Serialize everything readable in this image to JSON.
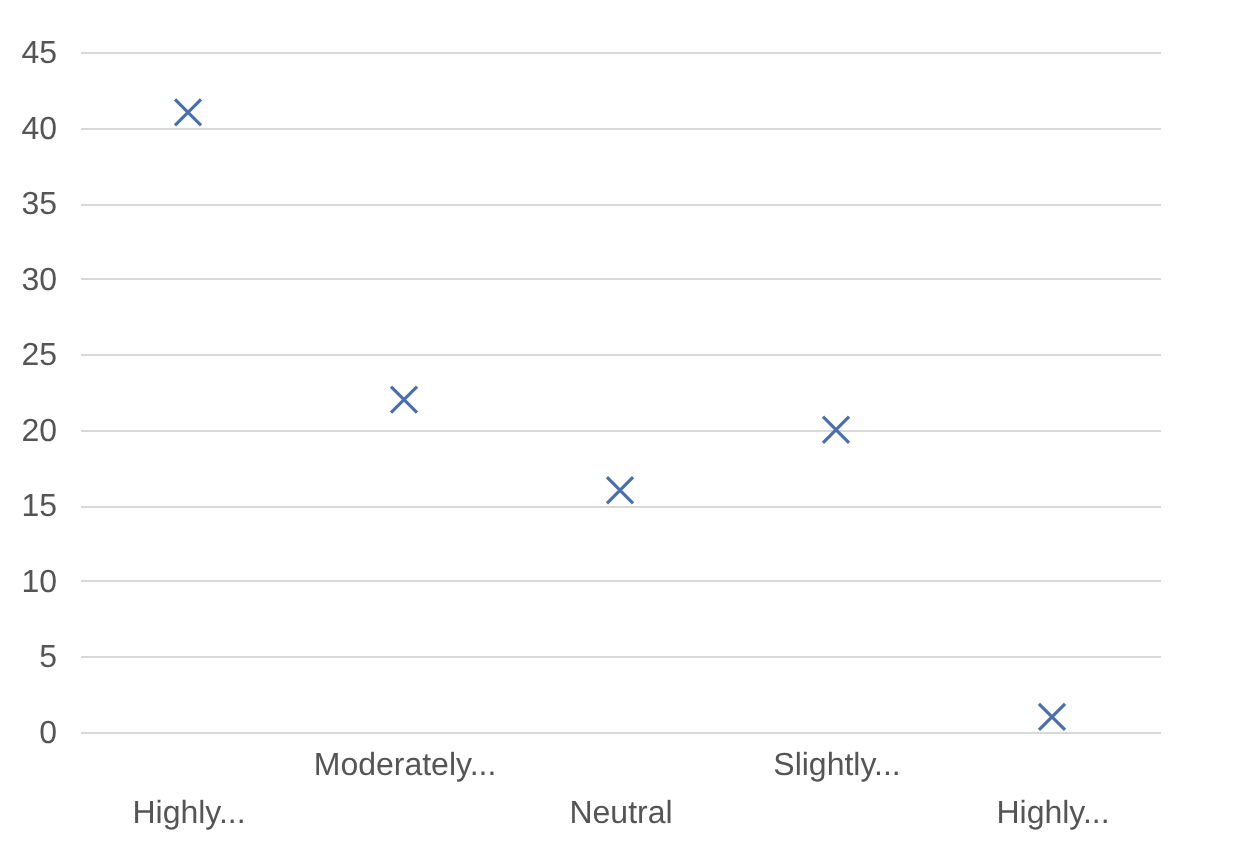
{
  "chart_data": {
    "type": "scatter",
    "categories": [
      "Highly...",
      "Moderately...",
      "Neutral",
      "Slightly...",
      "Highly..."
    ],
    "values": [
      41,
      22,
      16,
      20,
      1
    ],
    "color": "#4a6fad",
    "marker": "cross",
    "ylim": [
      0,
      45
    ],
    "yticks": [
      0,
      5,
      10,
      15,
      20,
      25,
      30,
      35,
      40,
      45
    ],
    "grid": "y"
  }
}
